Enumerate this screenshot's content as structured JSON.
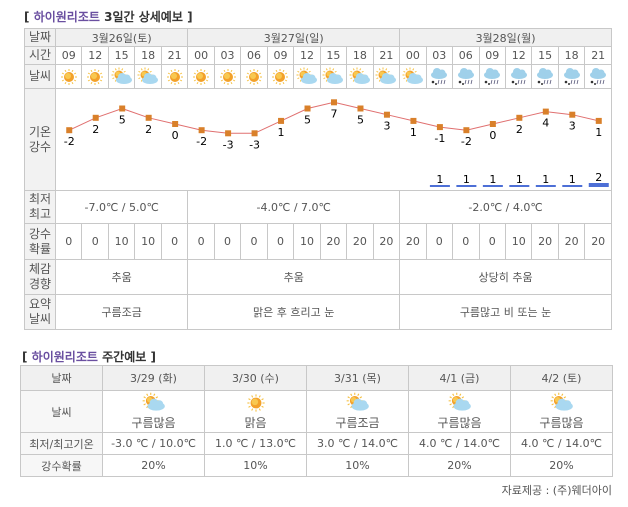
{
  "short_term": {
    "title_brand": "하이원리조트",
    "title_rest": "3일간 상세예보",
    "labels": {
      "date": "날짜",
      "time": "시간",
      "weather": "날씨",
      "temp_precip": [
        "기온",
        "강수"
      ],
      "minmax": [
        "최저",
        "최고"
      ],
      "pop": [
        "강수",
        "확률"
      ],
      "feel": [
        "체감",
        "경향"
      ],
      "summary": [
        "요약",
        "날씨"
      ]
    },
    "days": [
      {
        "date": "3월26일(토)",
        "minmax": "-7.0℃ / 5.0℃",
        "feel": "추움",
        "summary": "구름조금"
      },
      {
        "date": "3월27일(일)",
        "minmax": "-4.0℃ / 7.0℃",
        "feel": "추움",
        "summary": "맑은 후 흐리고 눈"
      },
      {
        "date": "3월28일(월)",
        "minmax": "-2.0℃ / 4.0℃",
        "feel": "상당히 추움",
        "summary": "구름많고 비 또는 눈"
      }
    ],
    "times": [
      "09",
      "12",
      "15",
      "18",
      "21",
      "00",
      "03",
      "06",
      "09",
      "12",
      "15",
      "18",
      "21",
      "00",
      "03",
      "06",
      "09",
      "12",
      "15",
      "18",
      "21"
    ],
    "weather_icons": [
      "sun",
      "sun",
      "sun-cloud",
      "sun-cloud",
      "sun",
      "sun",
      "sun",
      "sun",
      "sun",
      "sun-cloud",
      "sun-cloud",
      "sun-cloud",
      "sun-cloud",
      "sun-cloud",
      "rain-cloud",
      "rain-cloud",
      "rain-cloud",
      "rain-cloud",
      "rain-cloud",
      "rain-cloud",
      "rain-cloud"
    ],
    "pop": [
      "0",
      "0",
      "10",
      "10",
      "0",
      "0",
      "0",
      "0",
      "0",
      "10",
      "20",
      "20",
      "20",
      "20",
      "0",
      "0",
      "0",
      "10",
      "20",
      "20",
      "20"
    ],
    "chart_data": {
      "type": "line",
      "temps": [
        -2,
        2,
        5,
        2,
        0,
        -2,
        -3,
        -3,
        1,
        5,
        7,
        5,
        3,
        1,
        -1,
        -2,
        0,
        2,
        4,
        3,
        1
      ],
      "precip": [
        null,
        null,
        null,
        null,
        null,
        null,
        null,
        null,
        null,
        null,
        null,
        null,
        null,
        null,
        1,
        1,
        1,
        1,
        1,
        1,
        2
      ],
      "line_color": "#e07070",
      "marker_color": "#d9802a",
      "precip_color": "#4d6fd6"
    }
  },
  "weekly": {
    "title_brand": "하이원리조트",
    "title_rest": "주간예보",
    "labels": {
      "date": "날짜",
      "weather": "날씨",
      "temp": "최저/최고기온",
      "pop": "강수확률"
    },
    "days": [
      {
        "date": "3/29 (화)",
        "icon": "sun-cloud",
        "weather": "구름많음",
        "temp": "-3.0 ℃ / 10.0℃",
        "pop": "20%"
      },
      {
        "date": "3/30 (수)",
        "icon": "sun",
        "weather": "맑음",
        "temp": "1.0 ℃ / 13.0℃",
        "pop": "10%"
      },
      {
        "date": "3/31 (목)",
        "icon": "sun-cloud",
        "weather": "구름조금",
        "temp": "3.0 ℃ / 14.0℃",
        "pop": "10%"
      },
      {
        "date": "4/1 (금)",
        "icon": "sun-cloud",
        "weather": "구름많음",
        "temp": "4.0 ℃ / 14.0℃",
        "pop": "20%"
      },
      {
        "date": "4/2 (토)",
        "icon": "sun-cloud",
        "weather": "구름많음",
        "temp": "4.0 ℃ / 14.0℃",
        "pop": "20%"
      }
    ]
  },
  "footer": "자료제공 : (주)웨더아이"
}
